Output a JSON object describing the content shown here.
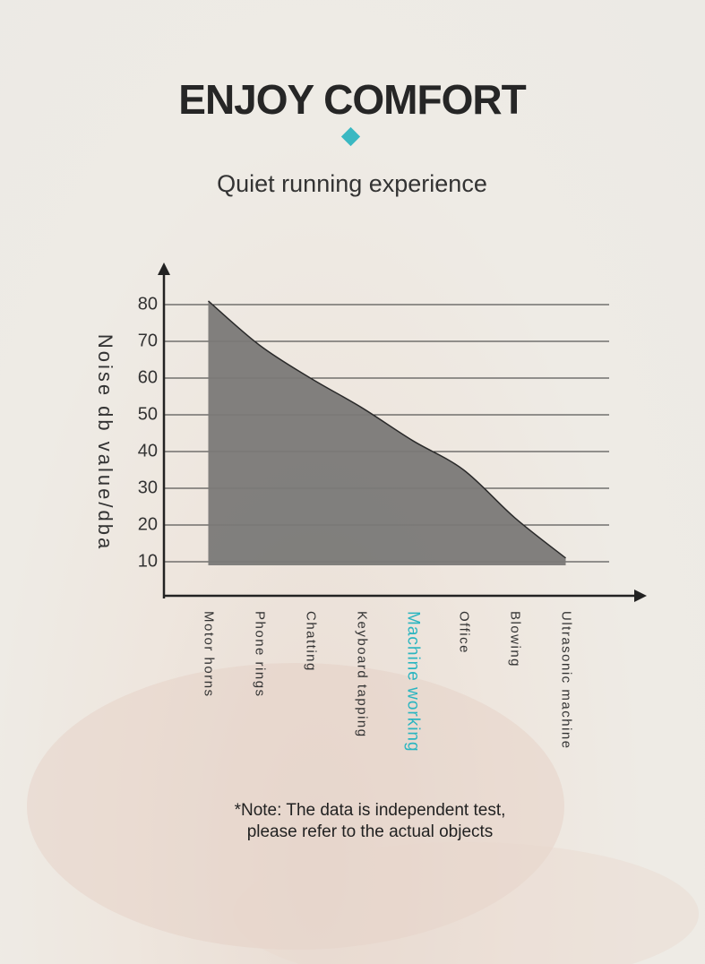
{
  "chart_data": {
    "type": "area",
    "title": "ENJOY COMFORT",
    "subtitle": "Quiet running experience",
    "y_label": "Noise db value/dba",
    "categories": [
      "Motor horns",
      "Phone rings",
      "Chatting",
      "Keyboard tapping",
      "Machine working",
      "Office",
      "Blowing",
      "Ultrasonic machine"
    ],
    "values": [
      81,
      69,
      60,
      52,
      43,
      35,
      22,
      11
    ],
    "color": "#7a7977",
    "highlight_index": 4,
    "highlight_color": "#2bb5c0",
    "ylim": [
      0,
      90
    ],
    "yticks": [
      10,
      20,
      30,
      40,
      50,
      60,
      70,
      80
    ],
    "grid": true,
    "note": [
      "*Note: The data is independent test,",
      "please refer to the actual objects"
    ]
  }
}
